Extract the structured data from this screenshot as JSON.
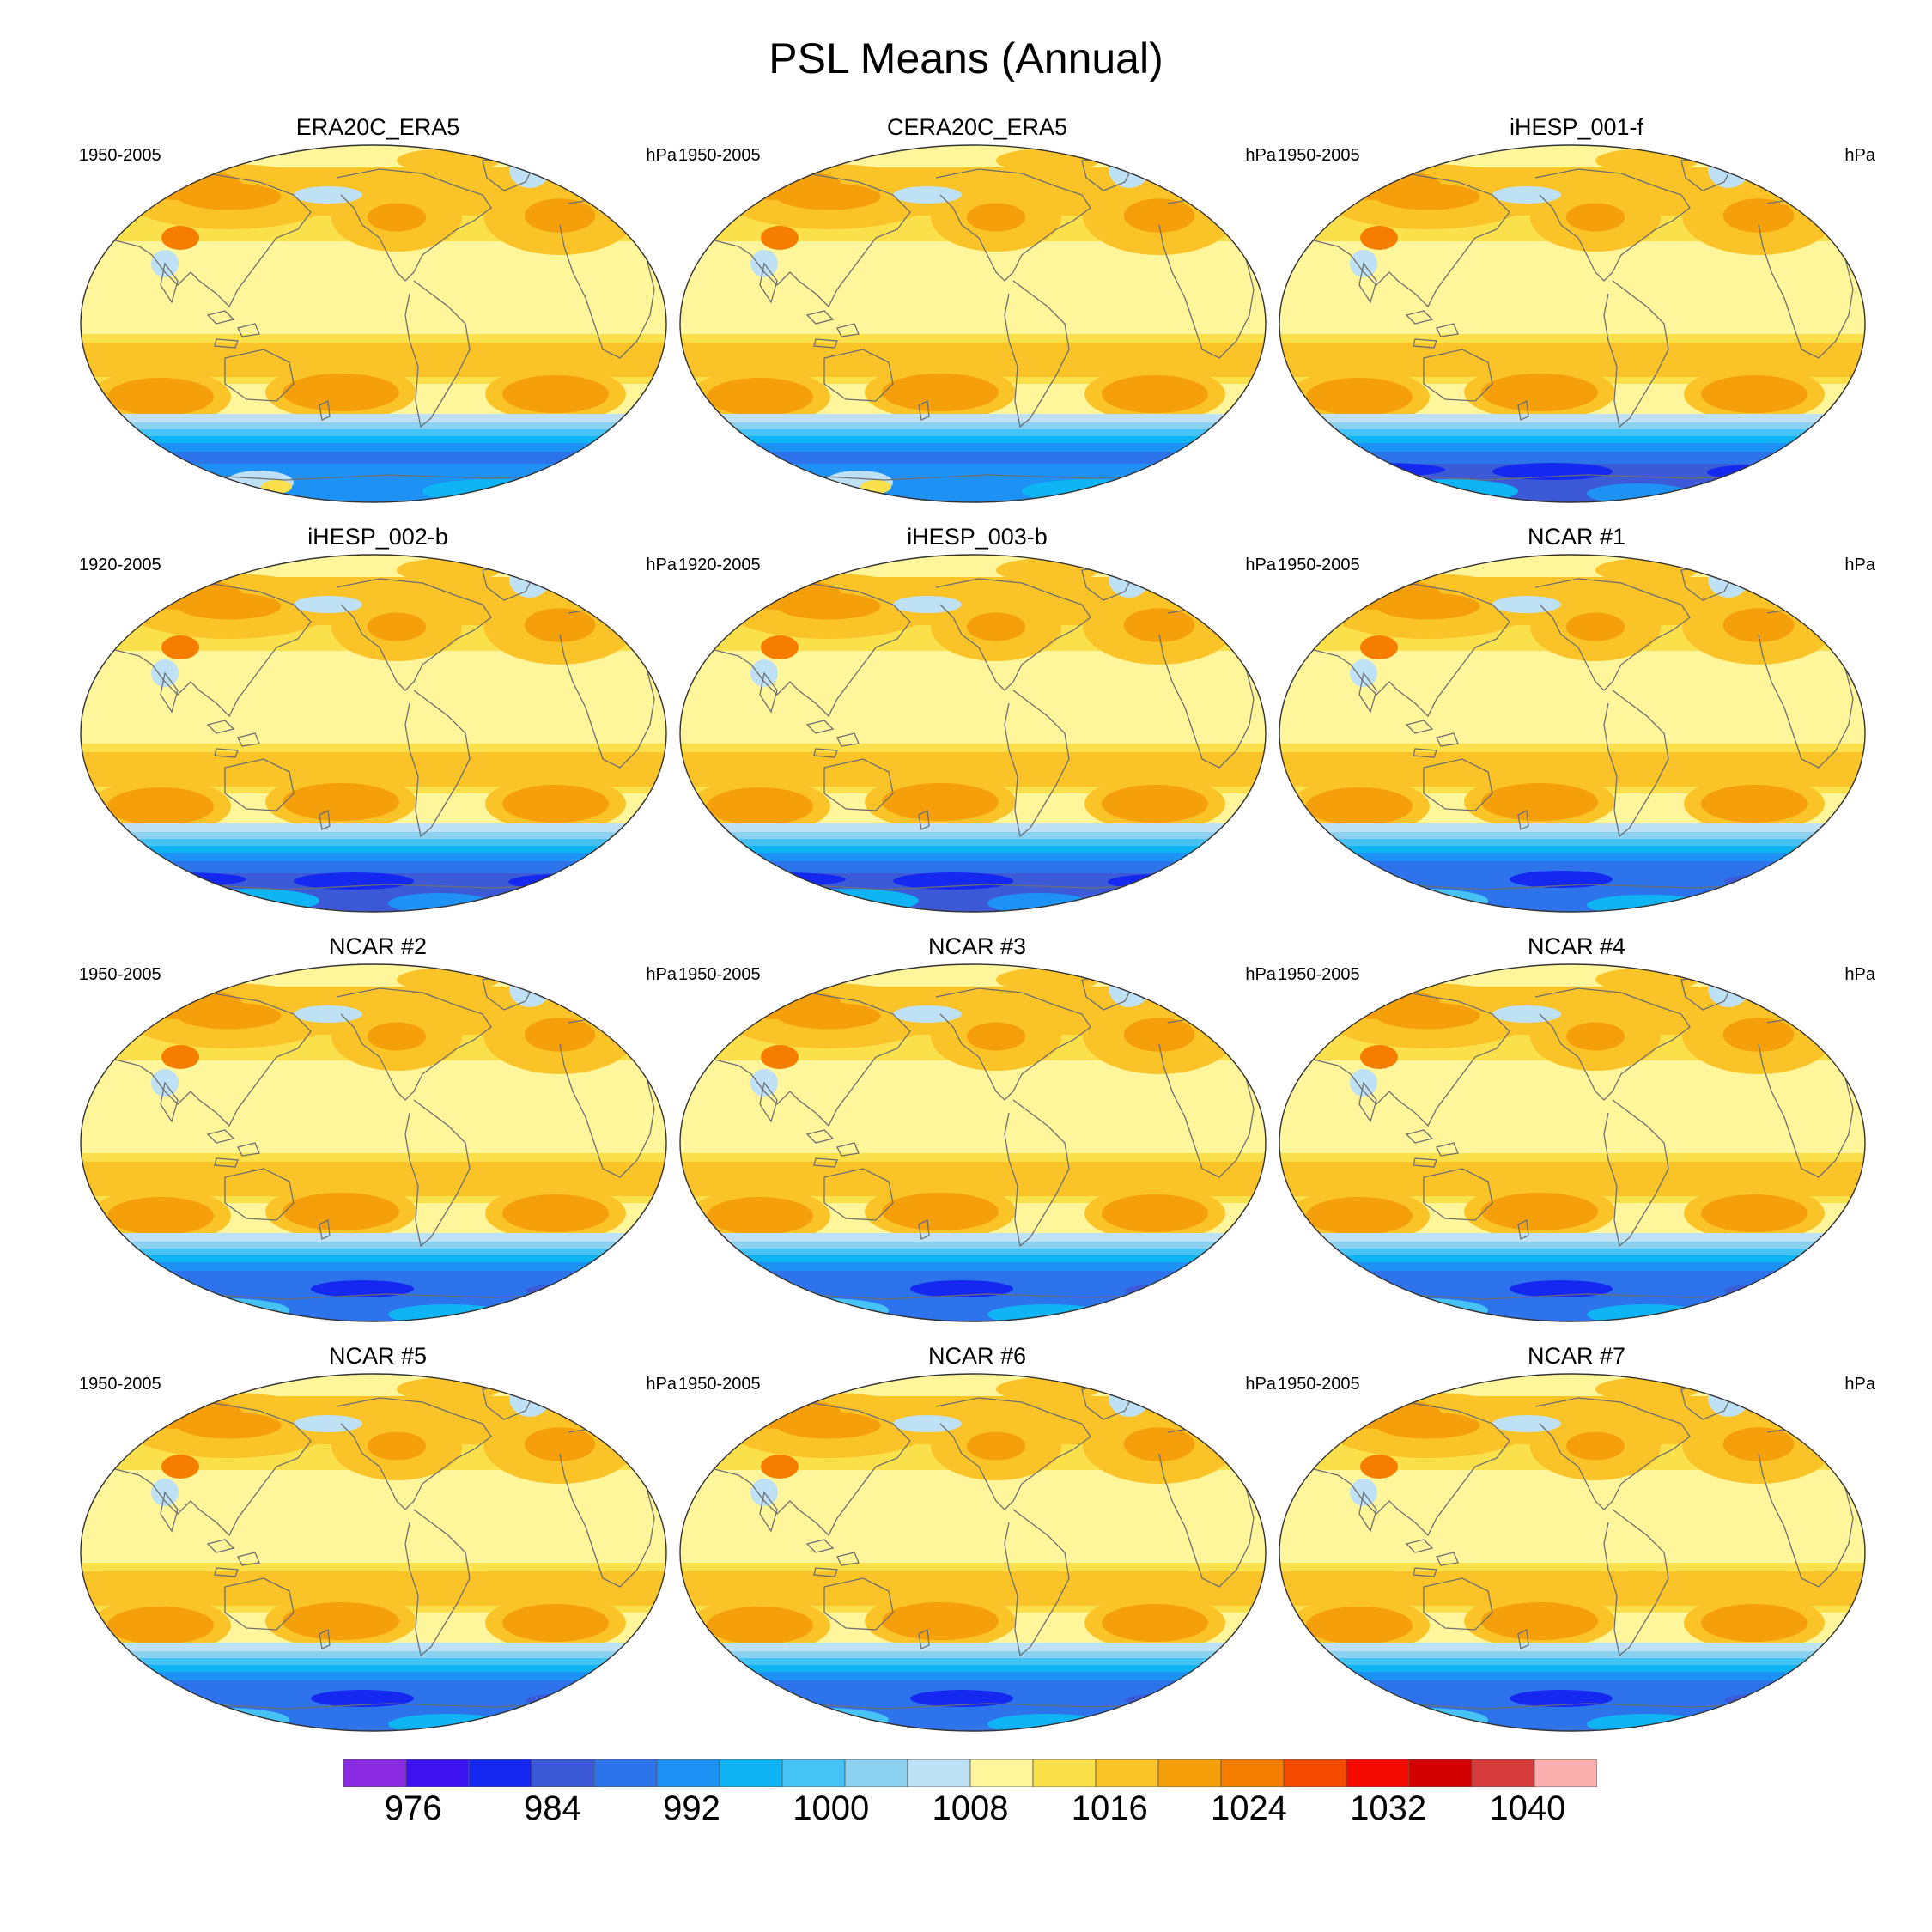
{
  "figure": {
    "title": "PSL Means (Annual)",
    "units": "hPa"
  },
  "panels": [
    {
      "title": "ERA20C_ERA5",
      "period": "1950-2005",
      "units": "hPa",
      "antarctic_style": "reanalysis"
    },
    {
      "title": "CERA20C_ERA5",
      "period": "1950-2005",
      "units": "hPa",
      "antarctic_style": "reanalysis"
    },
    {
      "title": "iHESP_001-f",
      "period": "1950-2005",
      "units": "hPa",
      "antarctic_style": "deep"
    },
    {
      "title": "iHESP_002-b",
      "period": "1920-2005",
      "units": "hPa",
      "antarctic_style": "deep"
    },
    {
      "title": "iHESP_003-b",
      "period": "1920-2005",
      "units": "hPa",
      "antarctic_style": "deep"
    },
    {
      "title": "NCAR #1",
      "period": "1950-2005",
      "units": "hPa",
      "antarctic_style": "model"
    },
    {
      "title": "NCAR #2",
      "period": "1950-2005",
      "units": "hPa",
      "antarctic_style": "model"
    },
    {
      "title": "NCAR #3",
      "period": "1950-2005",
      "units": "hPa",
      "antarctic_style": "model"
    },
    {
      "title": "NCAR #4",
      "period": "1950-2005",
      "units": "hPa",
      "antarctic_style": "model"
    },
    {
      "title": "NCAR #5",
      "period": "1950-2005",
      "units": "hPa",
      "antarctic_style": "model"
    },
    {
      "title": "NCAR #6",
      "period": "1950-2005",
      "units": "hPa",
      "antarctic_style": "model"
    },
    {
      "title": "NCAR #7",
      "period": "1950-2005",
      "units": "hPa",
      "antarctic_style": "model"
    }
  ],
  "colorbar": {
    "labels": [
      "976",
      "984",
      "992",
      "1000",
      "1008",
      "1016",
      "1024",
      "1032",
      "1040"
    ],
    "label_values": [
      976,
      984,
      992,
      1000,
      1008,
      1016,
      1024,
      1032,
      1040
    ],
    "min": 972,
    "max": 1044,
    "step": 4,
    "colors": [
      "#8a2be2",
      "#3c12f0",
      "#1428f0",
      "#3c5ad7",
      "#2d73eb",
      "#1e91f5",
      "#0fb4f5",
      "#46c3f5",
      "#8cd2f0",
      "#bee1f5",
      "#fff59b",
      "#fae14b",
      "#fac328",
      "#f5a00a",
      "#f57d00",
      "#f54b00",
      "#f50a00",
      "#d20000",
      "#d73c3c",
      "#faafaf"
    ]
  },
  "map": {
    "projection": "Robinson",
    "field": "sea level pressure",
    "background_color": "#fff59b",
    "coastline_color": "#6e6e6e"
  }
}
